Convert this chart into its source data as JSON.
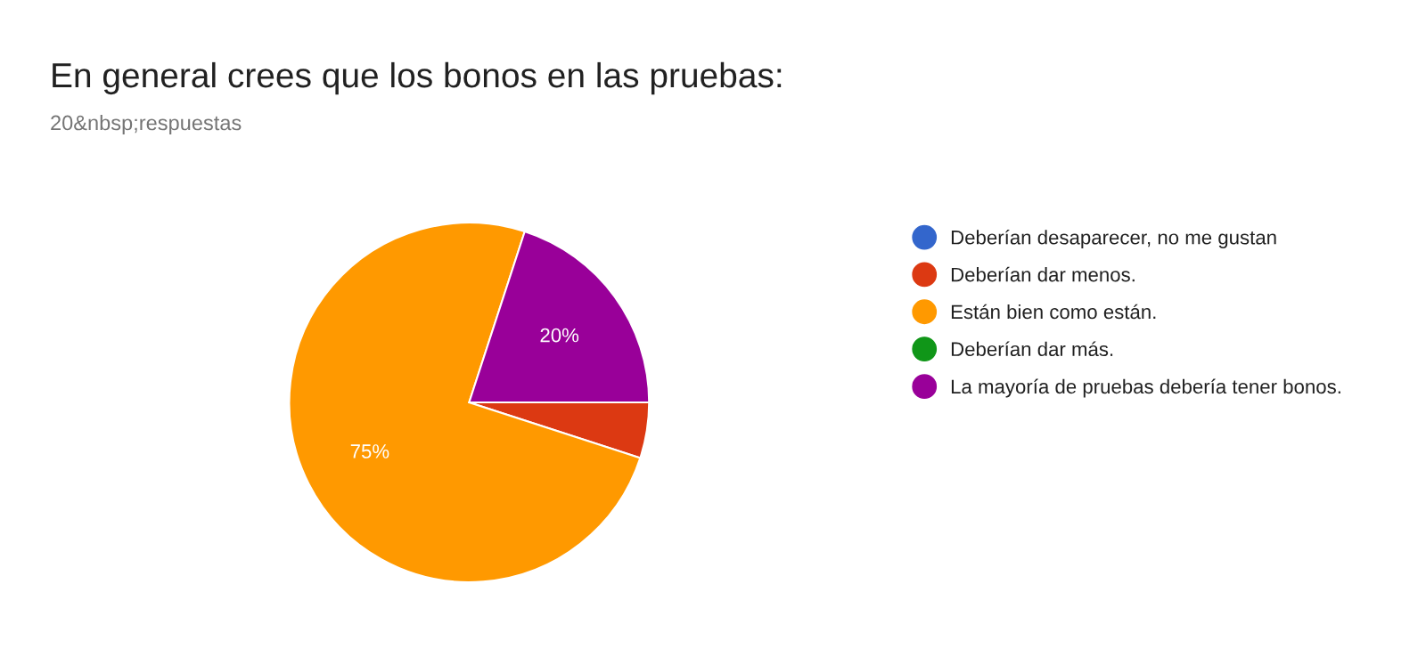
{
  "chart_data": {
    "type": "pie",
    "title": "En general crees que los bonos en las pruebas:",
    "subtitle": "20&nbsp;respuestas",
    "categories": [
      "Deberían desaparecer, no me gustan",
      "Deberían dar menos.",
      "Están bien como están.",
      "Deberían dar más.",
      "La mayoría de pruebas debería tener bonos."
    ],
    "values": [
      0,
      5,
      75,
      0,
      20
    ],
    "colors": [
      "#3366cc",
      "#dc3912",
      "#ff9900",
      "#109618",
      "#990099"
    ],
    "value_labels": [
      null,
      null,
      "75%",
      null,
      "20%"
    ],
    "legend": "right"
  }
}
